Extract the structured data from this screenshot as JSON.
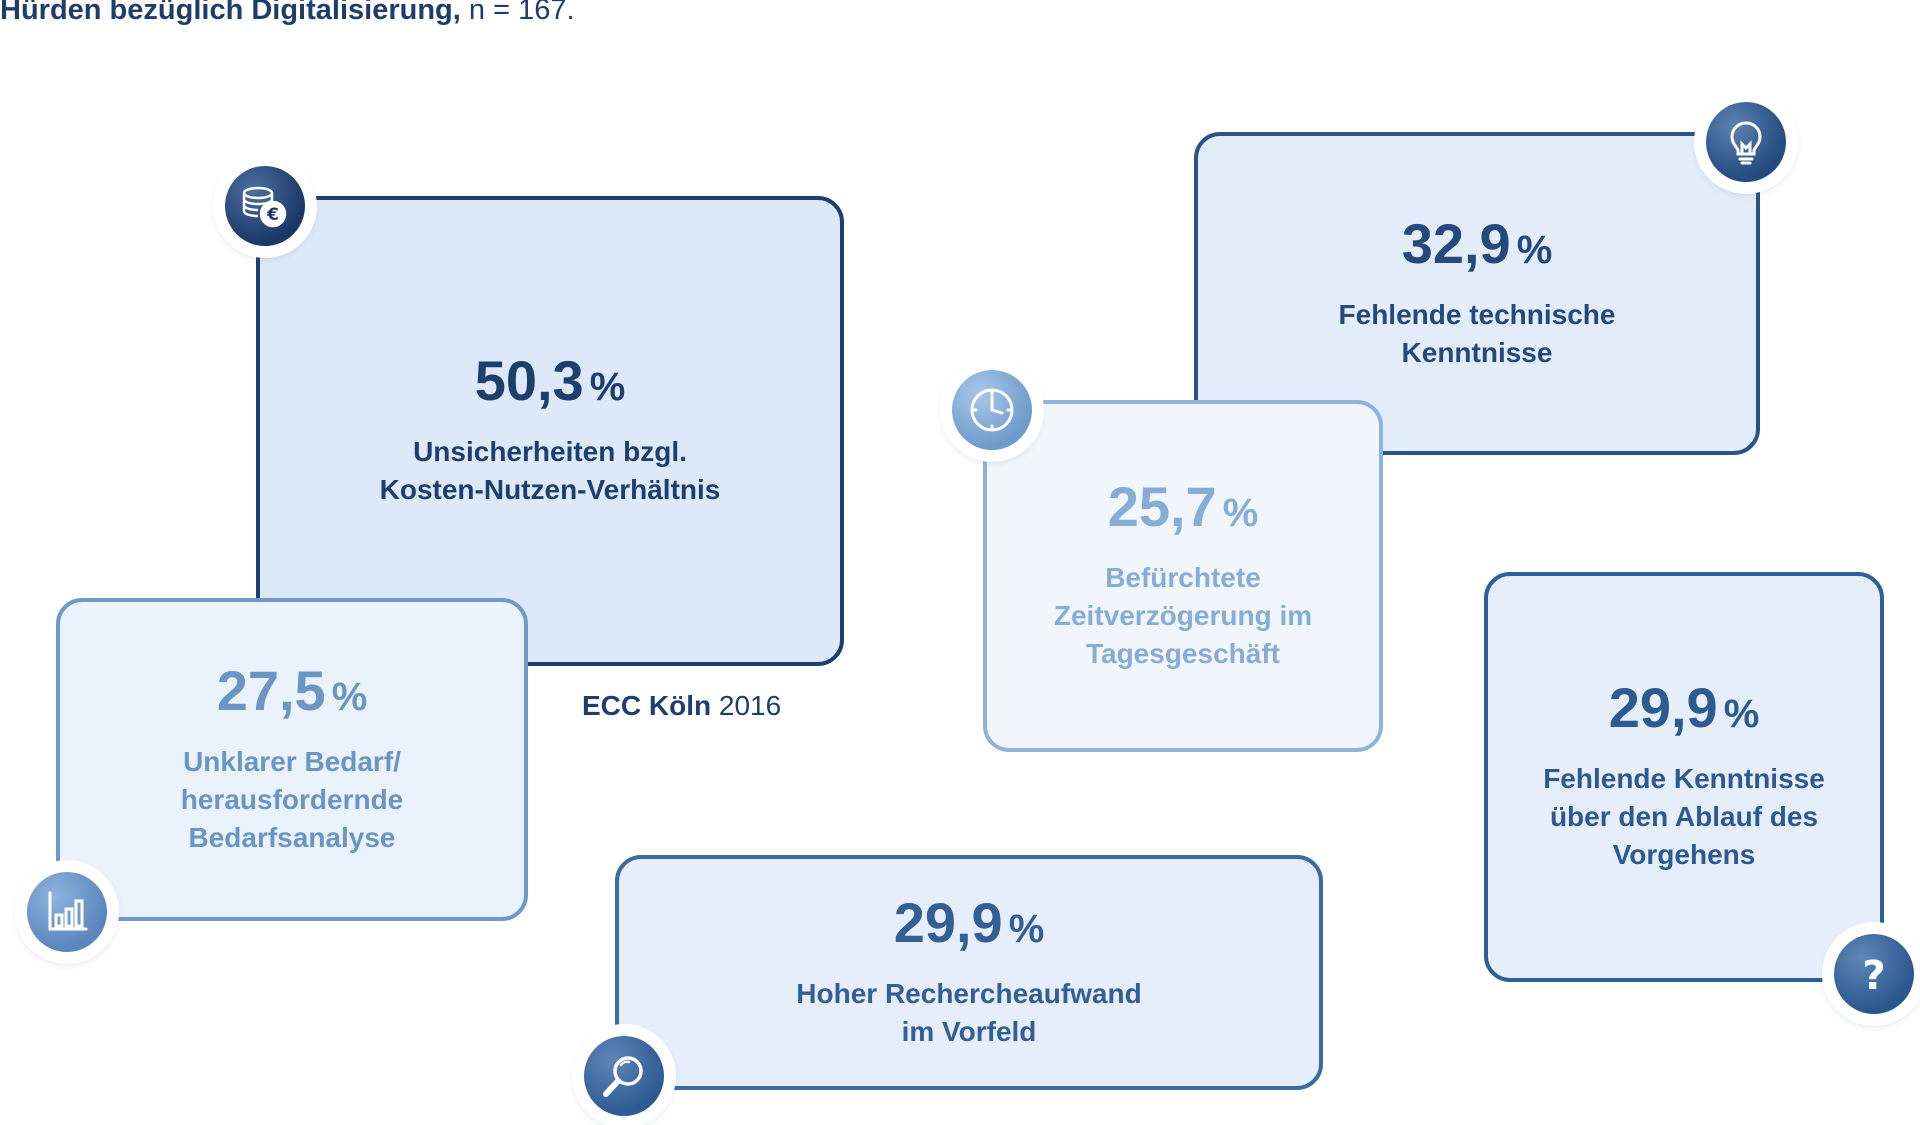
{
  "title": {
    "bold": "Hürden bezüglich Digitalisierung,",
    "rest": "n = 167."
  },
  "source": {
    "org": "ECC Köln",
    "year": "2016"
  },
  "cards": {
    "cost": {
      "value": "50,3",
      "unit": "%",
      "label": "Unsicherheiten bzgl.\nKosten-Nutzen-Verhältnis",
      "icon": "coins-euro-icon"
    },
    "tech": {
      "value": "32,9",
      "unit": "%",
      "label": "Fehlende technische\nKenntnisse",
      "icon": "lightbulb-icon"
    },
    "time": {
      "value": "25,7",
      "unit": "%",
      "label": "Befürchtete\nZeitverzögerung im\nTagesgeschäft",
      "icon": "clock-icon"
    },
    "need": {
      "value": "27,5",
      "unit": "%",
      "label": "Unklarer Bedarf/\nherausfordernde\nBedarfsanalyse",
      "icon": "bar-chart-icon"
    },
    "proc": {
      "value": "29,9",
      "unit": "%",
      "label": "Fehlende Kenntnisse\nüber den Ablauf des\nVorgehens",
      "icon": "question-mark-icon"
    },
    "rech": {
      "value": "29,9",
      "unit": "%",
      "label": "Hoher Rechercheaufwand\nim Vorfeld",
      "icon": "magnifier-icon"
    }
  },
  "colors": {
    "dark_navy": "#1e3f6e",
    "mid_blue": "#2f5f97",
    "light_blue": "#8fb3db",
    "card_fill": "#dde9f8"
  }
}
